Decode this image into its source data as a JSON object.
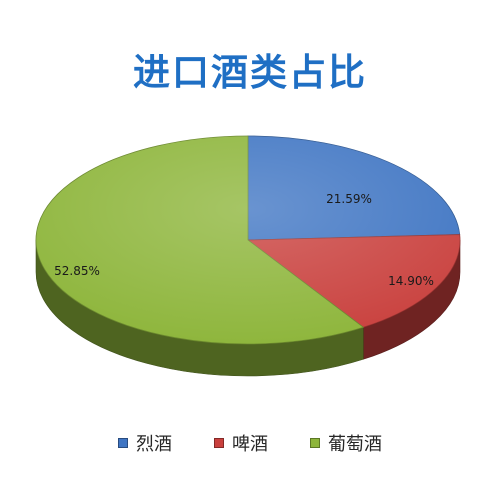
{
  "chart_data": {
    "type": "pie",
    "title": "进口酒类占比",
    "series": [
      {
        "name": "烈酒",
        "value": 21.59,
        "label": "21.59%",
        "color": "#3f75c3"
      },
      {
        "name": "啤酒",
        "value": 14.9,
        "label": "14.90%",
        "color": "#c9403d"
      },
      {
        "name": "葡萄酒",
        "value": 52.85,
        "label": "52.85%",
        "color": "#8db53a"
      }
    ],
    "legend_position": "bottom",
    "style": "3d"
  }
}
